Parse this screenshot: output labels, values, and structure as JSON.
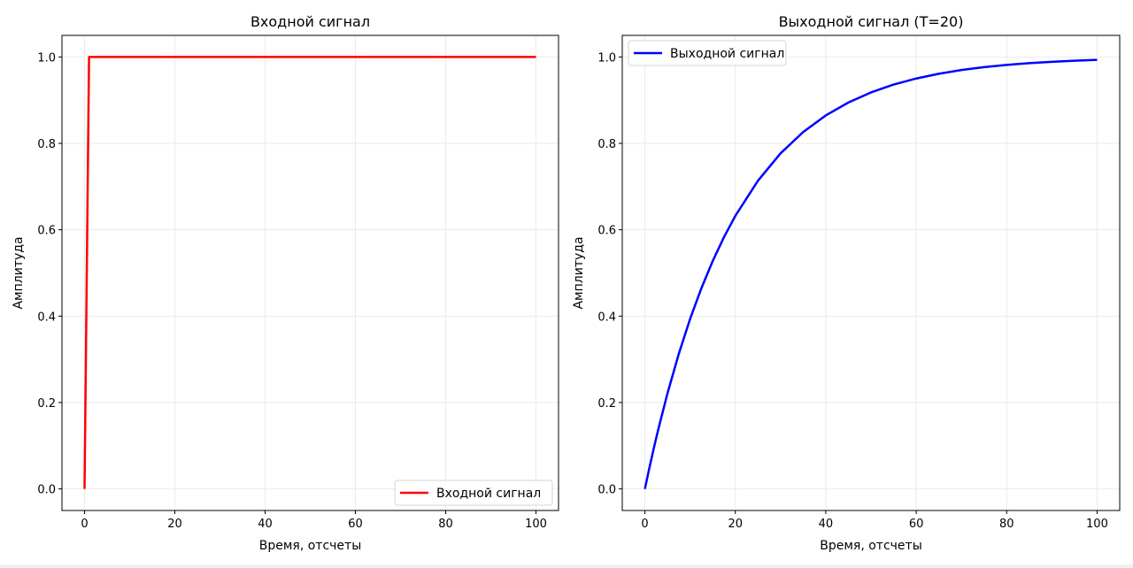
{
  "chart_data": [
    {
      "type": "line",
      "title": "Входной сигнал",
      "xlabel": "Время, отсчеты",
      "ylabel": "Амплитуда",
      "xlim": [
        -5,
        105
      ],
      "ylim": [
        -0.05,
        1.05
      ],
      "xticks": [
        0,
        20,
        40,
        60,
        80,
        100
      ],
      "yticks": [
        0.0,
        0.2,
        0.4,
        0.6,
        0.8,
        1.0
      ],
      "grid": true,
      "legend_position": "lower right",
      "series": [
        {
          "name": "Входной сигнал",
          "color": "#ff0000",
          "x": [
            0,
            1,
            100
          ],
          "y": [
            0,
            1,
            1
          ]
        }
      ]
    },
    {
      "type": "line",
      "title": "Выходной сигнал (T=20)",
      "xlabel": "Время, отсчеты",
      "ylabel": "Амплитуда",
      "xlim": [
        -5,
        105
      ],
      "ylim": [
        -0.05,
        1.05
      ],
      "xticks": [
        0,
        20,
        40,
        60,
        80,
        100
      ],
      "yticks": [
        0.0,
        0.2,
        0.4,
        0.6,
        0.8,
        1.0
      ],
      "grid": true,
      "legend_position": "upper left",
      "series": [
        {
          "name": "Выходной сигнал",
          "color": "#0000ff",
          "x": [
            0,
            1,
            2,
            2.5,
            3,
            5,
            7.5,
            10,
            12.5,
            15,
            17.5,
            20,
            25,
            30,
            35,
            40,
            45,
            50,
            55,
            60,
            65,
            70,
            75,
            80,
            85,
            90,
            95,
            100
          ],
          "y": [
            0,
            0.0488,
            0.0952,
            0.1175,
            0.1393,
            0.2212,
            0.3127,
            0.3935,
            0.4647,
            0.5276,
            0.5831,
            0.6321,
            0.7135,
            0.7769,
            0.8262,
            0.8647,
            0.8946,
            0.9179,
            0.9361,
            0.9502,
            0.9612,
            0.9698,
            0.9765,
            0.9817,
            0.9857,
            0.9889,
            0.9913,
            0.9933
          ]
        }
      ]
    }
  ]
}
